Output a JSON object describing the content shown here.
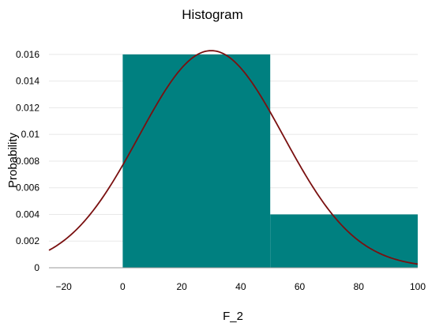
{
  "chart_data": {
    "type": "bar",
    "title": "Histogram",
    "xlabel": "F_2",
    "ylabel": "Probability",
    "xlim": [
      -25,
      100
    ],
    "ylim": [
      0,
      0.017
    ],
    "x_ticks": [
      -20,
      0,
      20,
      40,
      60,
      80,
      100
    ],
    "y_ticks": [
      0,
      0.002,
      0.004,
      0.006,
      0.008,
      0.01,
      0.012,
      0.014,
      0.016
    ],
    "y_tick_labels": [
      "0",
      "0.002",
      "0.004",
      "0.006",
      "0.008",
      "0.01",
      "0.012",
      "0.014",
      "0.016"
    ],
    "grid": "horizontal",
    "bins": [
      {
        "x0": 0,
        "x1": 50,
        "value": 0.016
      },
      {
        "x0": 50,
        "x1": 100,
        "value": 0.004
      }
    ],
    "density_curve": {
      "type": "normal",
      "mean": 30,
      "std": 24.5
    },
    "colors": {
      "bars": "#008080",
      "curve": "#7a1010",
      "baseline": "#999999"
    }
  }
}
